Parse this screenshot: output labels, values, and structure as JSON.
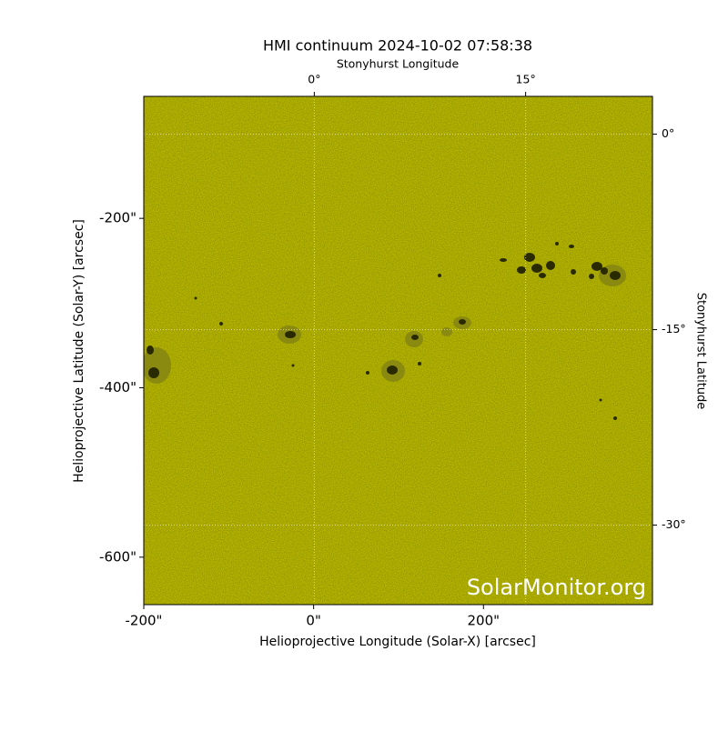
{
  "chart_data": {
    "type": "image",
    "title": "HMI continuum 2024-10-02 07:58:38",
    "xlabel": "Helioprojective Longitude (Solar-X) [arcsec]",
    "ylabel": "Helioprojective Latitude (Solar-Y) [arcsec]",
    "x2label": "Stonyhurst Longitude",
    "y2label": "Stonyhurst Latitude",
    "watermark": "SolarMonitor.org",
    "xlim": [
      -200,
      399
    ],
    "ylim": [
      -656,
      -56
    ],
    "xticks": [
      {
        "value": -200,
        "label": "-200\""
      },
      {
        "value": 0,
        "label": "0\""
      },
      {
        "value": 200,
        "label": "200\""
      }
    ],
    "yticks": [
      {
        "value": -200,
        "label": "-200\""
      },
      {
        "value": -400,
        "label": "-400\""
      },
      {
        "value": -600,
        "label": "-600\""
      }
    ],
    "x2lim": [
      -12.1,
      24.0
    ],
    "y2lim": [
      -36.1,
      2.9
    ],
    "x2ticks": [
      {
        "value": 0,
        "label": "0°"
      },
      {
        "value": 15,
        "label": "15°"
      }
    ],
    "y2ticks": [
      {
        "value": 0,
        "label": "0°"
      },
      {
        "value": -15,
        "label": "-15°"
      },
      {
        "value": -30,
        "label": "-30°"
      }
    ],
    "color": "#cccc00",
    "grid": true
  }
}
